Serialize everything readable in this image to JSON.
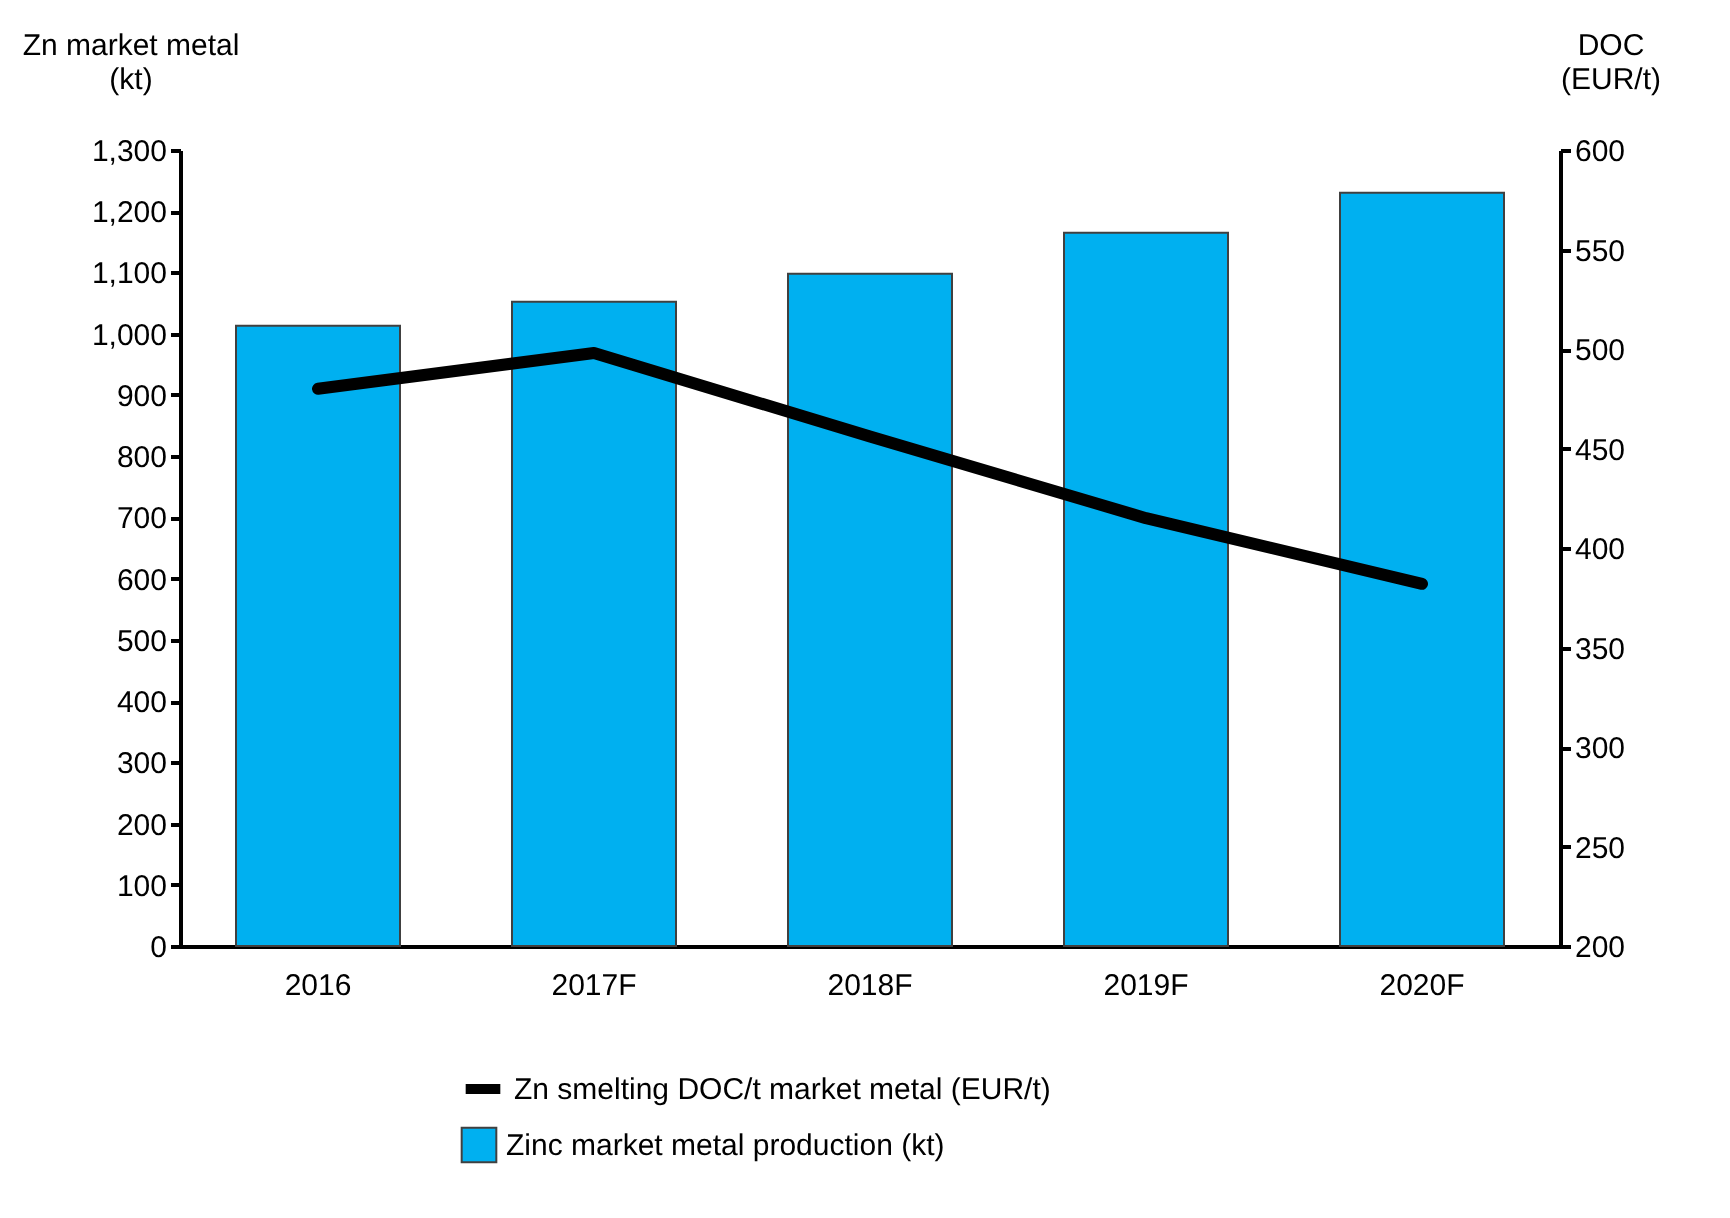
{
  "chart_data": {
    "type": "bar",
    "categories": [
      "2016",
      "2017F",
      "2018F",
      "2019F",
      "2020F"
    ],
    "ylabel": "Zn market metal\n(kt)",
    "y2label": "DOC\n(EUR/t)",
    "ylim": [
      0,
      1300
    ],
    "yticks": [
      {
        "value": 0,
        "label": "0"
      },
      {
        "value": 100,
        "label": "100"
      },
      {
        "value": 200,
        "label": "200"
      },
      {
        "value": 300,
        "label": "300"
      },
      {
        "value": 400,
        "label": "400"
      },
      {
        "value": 500,
        "label": "500"
      },
      {
        "value": 600,
        "label": "600"
      },
      {
        "value": 700,
        "label": "700"
      },
      {
        "value": 800,
        "label": "800"
      },
      {
        "value": 900,
        "label": "900"
      },
      {
        "value": 1000,
        "label": "1,000"
      },
      {
        "value": 1100,
        "label": "1,100"
      },
      {
        "value": 1200,
        "label": "1,200"
      },
      {
        "value": 1300,
        "label": "1,300"
      }
    ],
    "y2lim": [
      200,
      600
    ],
    "y2ticks": [
      200,
      250,
      300,
      350,
      400,
      450,
      500,
      550,
      600
    ],
    "series": [
      {
        "name": "Zn smelting DOC/t market metal (EUR/t)",
        "type": "line",
        "axis": "y2",
        "color": "#000000",
        "values": [
          480,
          498,
          456,
          415,
          382
        ]
      },
      {
        "name": "Zinc market metal production (kt)",
        "color": "#00b0f0",
        "values": [
          1013,
          1052,
          1098,
          1165,
          1230
        ]
      }
    ],
    "grid": false,
    "legend": "bottom",
    "marker": "none",
    "line_style": "solid"
  }
}
